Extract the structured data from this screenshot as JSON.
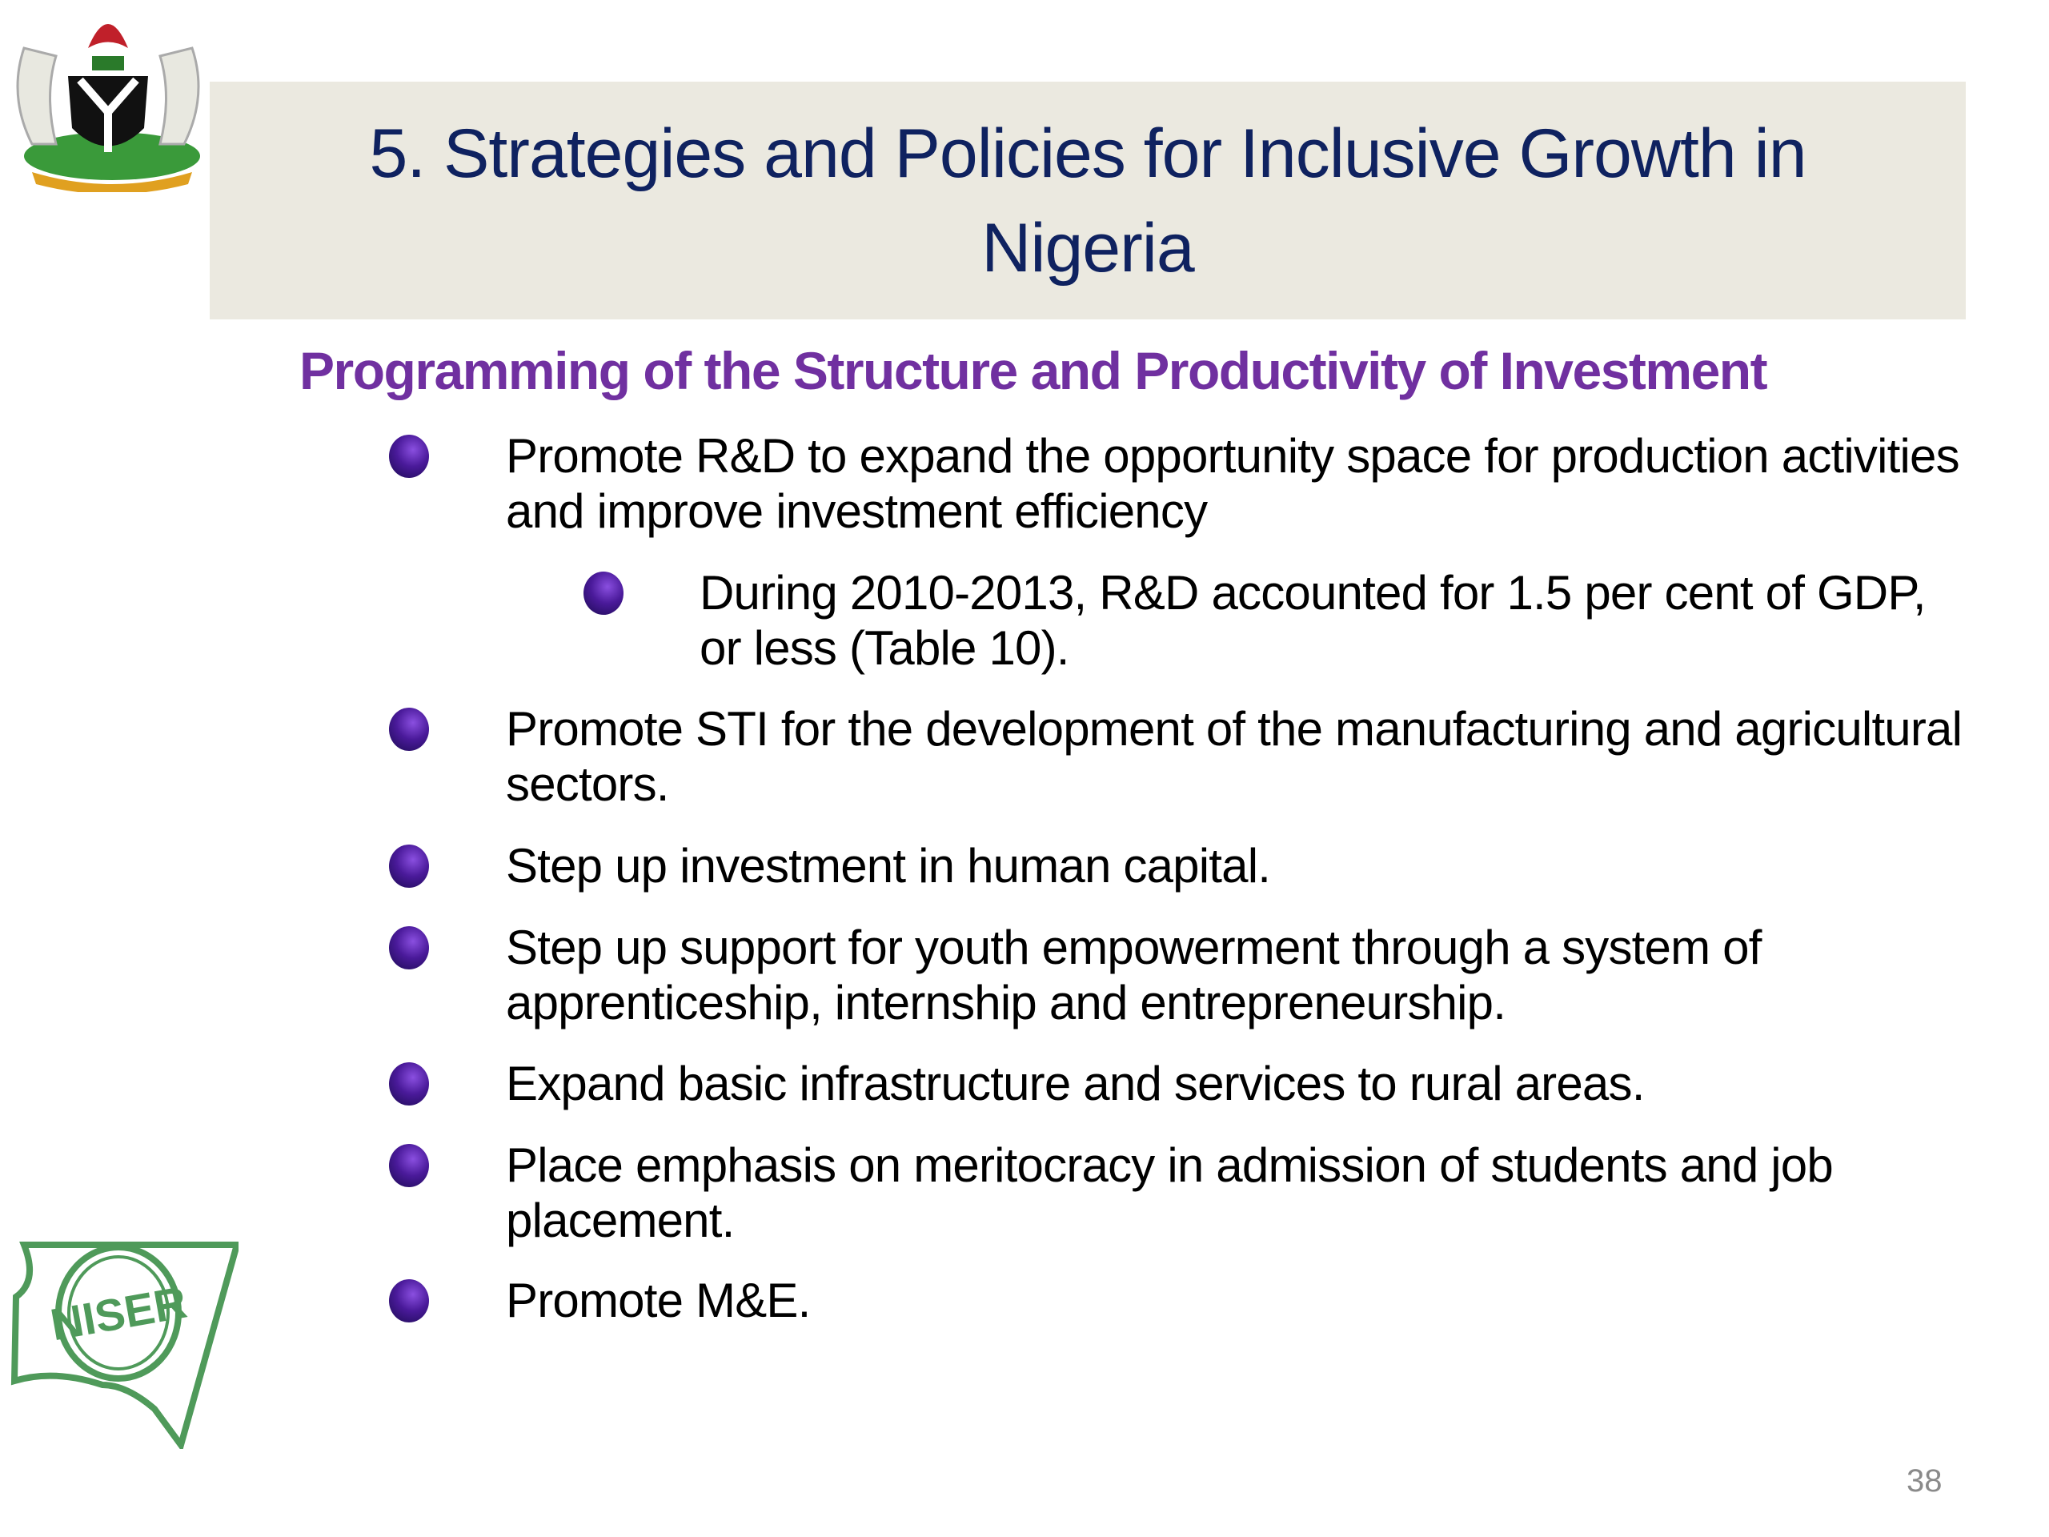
{
  "slide": {
    "title": "5. Strategies and Policies for Inclusive Growth in Nigeria",
    "subtitle": "Programming of the Structure and Productivity of Investment",
    "bullets": [
      {
        "level": 1,
        "text": "Promote R&D to expand the opportunity space for production activities and improve investment efficiency"
      },
      {
        "level": 2,
        "text": "During 2010-2013, R&D accounted for 1.5 per cent of GDP, or less (Table 10)."
      },
      {
        "level": 1,
        "text": "Promote STI for the development of the manufacturing and agricultural sectors."
      },
      {
        "level": 1,
        "text": "Step up investment in human capital."
      },
      {
        "level": 1,
        "text": "Step up support for youth empowerment through a system of apprenticeship, internship and entrepreneurship."
      },
      {
        "level": 1,
        "text": "Expand basic infrastructure and services to rural areas."
      },
      {
        "level": 1,
        "text": "Place emphasis on meritocracy in admission of students and job placement."
      },
      {
        "level": 1,
        "text": "Promote M&E."
      }
    ],
    "page_number": "38",
    "logos": {
      "top_left": "nigeria-coat-of-arms",
      "bottom_left": "NISER"
    },
    "colors": {
      "title": "#0f2260",
      "subtitle": "#7030a0",
      "title_bg": "#ebe9e0",
      "bullet": "#4a1a9a",
      "niser_logo": "#4f9a5a"
    }
  }
}
